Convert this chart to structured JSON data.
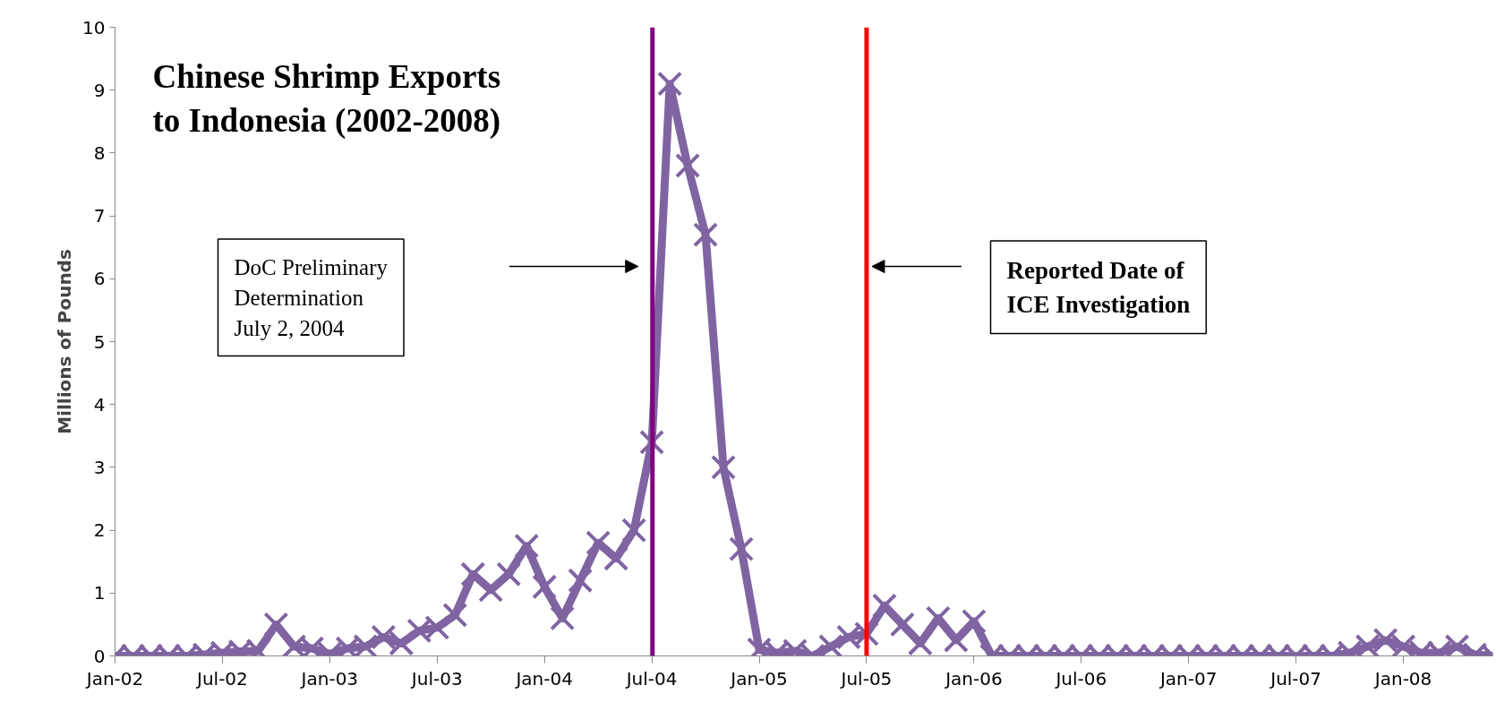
{
  "chart_data": {
    "type": "line",
    "title": "Chinese Shrimp Exports\nto Indonesia (2002-2008)",
    "ylabel": "Millions of Pounds",
    "x": [
      "2002-01",
      "2002-02",
      "2002-03",
      "2002-04",
      "2002-05",
      "2002-06",
      "2002-07",
      "2002-08",
      "2002-09",
      "2002-10",
      "2002-11",
      "2002-12",
      "2003-01",
      "2003-02",
      "2003-03",
      "2003-04",
      "2003-05",
      "2003-06",
      "2003-07",
      "2003-08",
      "2003-09",
      "2003-10",
      "2003-11",
      "2003-12",
      "2004-01",
      "2004-02",
      "2004-03",
      "2004-04",
      "2004-05",
      "2004-06",
      "2004-07",
      "2004-08",
      "2004-09",
      "2004-10",
      "2004-11",
      "2004-12",
      "2005-01",
      "2005-02",
      "2005-03",
      "2005-04",
      "2005-05",
      "2005-06",
      "2005-07",
      "2005-08",
      "2005-09",
      "2005-10",
      "2005-11",
      "2005-12",
      "2006-01",
      "2006-02",
      "2006-03",
      "2006-04",
      "2006-05",
      "2006-06",
      "2006-07",
      "2006-08",
      "2006-09",
      "2006-10",
      "2006-11",
      "2006-12",
      "2007-01",
      "2007-02",
      "2007-03",
      "2007-04",
      "2007-05",
      "2007-06",
      "2007-07",
      "2007-08",
      "2007-09",
      "2007-10",
      "2007-11",
      "2007-12",
      "2008-01",
      "2008-02",
      "2008-03",
      "2008-04",
      "2008-05",
      "2008-06"
    ],
    "series": [
      {
        "color": "#8064a2",
        "values": [
          0,
          0,
          0,
          0,
          0,
          0.02,
          0.05,
          0.07,
          0.08,
          0.5,
          0.15,
          0.12,
          0.03,
          0.12,
          0.15,
          0.3,
          0.2,
          0.4,
          0.45,
          0.65,
          1.3,
          1.05,
          1.3,
          1.75,
          1.1,
          0.6,
          1.2,
          1.8,
          1.55,
          2.0,
          3.4,
          9.1,
          7.8,
          6.7,
          3.0,
          1.7,
          0.1,
          0.05,
          0.08,
          0.0,
          0.15,
          0.3,
          0.35,
          0.8,
          0.5,
          0.2,
          0.6,
          0.25,
          0.55,
          0,
          0,
          0,
          0,
          0,
          0,
          0,
          0,
          0,
          0,
          0,
          0,
          0,
          0,
          0,
          0,
          0,
          0,
          0,
          0,
          0.05,
          0.15,
          0.25,
          0.15,
          0.05,
          0.05,
          0.15,
          0.02,
          0.0
        ]
      }
    ],
    "xlim": [
      "2002-01",
      "2008-06"
    ],
    "xticks": [
      {
        "value": "2002-01",
        "label": "Jan-02"
      },
      {
        "value": "2002-07",
        "label": "Jul-02"
      },
      {
        "value": "2003-01",
        "label": "Jan-03"
      },
      {
        "value": "2003-07",
        "label": "Jul-03"
      },
      {
        "value": "2004-01",
        "label": "Jan-04"
      },
      {
        "value": "2004-07",
        "label": "Jul-04"
      },
      {
        "value": "2005-01",
        "label": "Jan-05"
      },
      {
        "value": "2005-07",
        "label": "Jul-05"
      },
      {
        "value": "2006-01",
        "label": "Jan-06"
      },
      {
        "value": "2006-07",
        "label": "Jul-06"
      },
      {
        "value": "2007-01",
        "label": "Jan-07"
      },
      {
        "value": "2007-07",
        "label": "Jul-07"
      },
      {
        "value": "2008-01",
        "label": "Jan-08"
      }
    ],
    "ylim": [
      0,
      10
    ],
    "yticks": [
      0,
      1,
      2,
      3,
      4,
      5,
      6,
      7,
      8,
      9,
      10
    ],
    "ref_lines": [
      {
        "axis": "x",
        "value": "2004-07-02",
        "color": "#800080"
      },
      {
        "axis": "x",
        "value": "2005-07",
        "color": "#ff0000"
      }
    ],
    "annotations": [
      "DoC Preliminary\nDetermination\nJuly 2, 2004",
      "Reported Date of\nICE Investigation"
    ],
    "grid": false,
    "marker": "cross",
    "line_style": "solid"
  }
}
